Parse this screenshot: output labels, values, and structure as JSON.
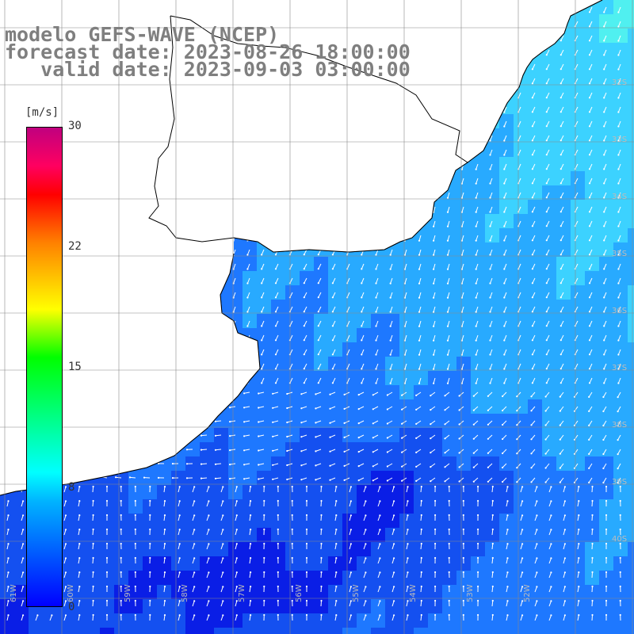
{
  "map": {
    "title_line1": "modelo GEFS-WAVE (NCEP)",
    "title_line2": "forecast date: 2023-08-26 18:00:00",
    "title_line3": "   valid date: 2023-09-03 03:00:00",
    "colorbar": {
      "unit_label": "[m/s]",
      "tick_labels": [
        "30",
        "22",
        "15",
        "8",
        "0"
      ],
      "colors": [
        "#0000ff",
        "#00b4ff",
        "#00ffff",
        "#00ff00",
        "#ffff00",
        "#ff8000",
        "#ff0000",
        "#c0007f"
      ]
    },
    "lat_labels": [
      "32S",
      "33S",
      "34S",
      "35S",
      "36S",
      "37S",
      "38S",
      "39S",
      "40S"
    ],
    "lon_labels": [
      "61W",
      "60W",
      "59W",
      "58W",
      "57W",
      "56W",
      "55W",
      "54W",
      "53W",
      "52W"
    ],
    "land_color": "#ffffff",
    "ocean_colors": [
      "#0a1ee6",
      "#1450f0",
      "#1e78ff",
      "#28aaff",
      "#3cd2ff",
      "#50f0f0"
    ]
  }
}
